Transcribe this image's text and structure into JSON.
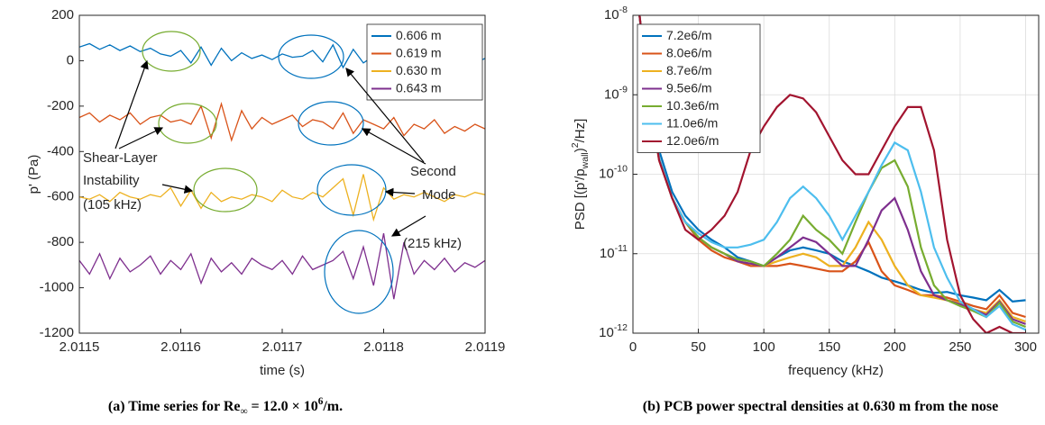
{
  "chart_data": [
    {
      "type": "line",
      "caption": "(a) Time series for Re_{∞} = 12.0 × 10^{6}/m.",
      "xlabel": "time (s)",
      "ylabel": "p' (Pa)",
      "x": [
        2.0115,
        2.01151,
        2.01152,
        2.01153,
        2.01154,
        2.01155,
        2.01156,
        2.01157,
        2.01158,
        2.01159,
        2.0116,
        2.01161,
        2.01162,
        2.01163,
        2.01164,
        2.01165,
        2.01166,
        2.01167,
        2.01168,
        2.01169,
        2.0117,
        2.01171,
        2.01172,
        2.01173,
        2.01174,
        2.01175,
        2.01176,
        2.01177,
        2.01178,
        2.01179,
        2.0118,
        2.01181,
        2.01182,
        2.01183,
        2.01184,
        2.01185,
        2.01186,
        2.01187,
        2.01188,
        2.01189,
        2.0119
      ],
      "xlim": [
        2.0115,
        2.0119
      ],
      "xticks": [
        2.0115,
        2.0116,
        2.0117,
        2.0118,
        2.0119
      ],
      "ylim": [
        -1200,
        200
      ],
      "yticks": [
        -1200,
        -1000,
        -800,
        -600,
        -400,
        -200,
        0,
        200
      ],
      "grid": false,
      "log_y": false,
      "legend": "upper right",
      "series": [
        {
          "name": "0.606 m",
          "color": "#0072bd",
          "values": [
            60,
            75,
            50,
            70,
            45,
            65,
            40,
            55,
            30,
            20,
            45,
            -10,
            60,
            -20,
            55,
            0,
            35,
            10,
            25,
            5,
            30,
            15,
            20,
            45,
            -5,
            70,
            -30,
            50,
            -10,
            20,
            5,
            25,
            -5,
            30,
            10,
            -15,
            20,
            5,
            35,
            -10,
            10
          ]
        },
        {
          "name": "0.619 m",
          "color": "#d95319",
          "values": [
            -250,
            -230,
            -270,
            -240,
            -260,
            -230,
            -280,
            -250,
            -240,
            -270,
            -260,
            -280,
            -200,
            -340,
            -190,
            -350,
            -220,
            -300,
            -250,
            -280,
            -260,
            -240,
            -290,
            -260,
            -270,
            -300,
            -230,
            -320,
            -260,
            -280,
            -300,
            -250,
            -330,
            -280,
            -300,
            -260,
            -320,
            -290,
            -310,
            -280,
            -300
          ]
        },
        {
          "name": "0.630 m",
          "color": "#edb120",
          "values": [
            -600,
            -610,
            -590,
            -620,
            -580,
            -600,
            -610,
            -590,
            -600,
            -560,
            -640,
            -570,
            -650,
            -580,
            -620,
            -600,
            -610,
            -590,
            -600,
            -620,
            -570,
            -600,
            -610,
            -580,
            -600,
            -560,
            -520,
            -680,
            -500,
            -700,
            -560,
            -610,
            -590,
            -600,
            -580,
            -600,
            -620,
            -590,
            -600,
            -580,
            -590
          ]
        },
        {
          "name": "0.643 m",
          "color": "#7e2f8e",
          "values": [
            -880,
            -940,
            -850,
            -960,
            -870,
            -930,
            -900,
            -860,
            -940,
            -880,
            -920,
            -850,
            -980,
            -870,
            -930,
            -890,
            -940,
            -870,
            -900,
            -920,
            -880,
            -940,
            -860,
            -920,
            -900,
            -880,
            -840,
            -960,
            -820,
            -990,
            -760,
            -1050,
            -800,
            -940,
            -880,
            -920,
            -870,
            -930,
            -890,
            -910,
            -880
          ]
        }
      ],
      "annotations": [
        {
          "lines": [
            "Shear-Layer",
            "Instability",
            "(105 kHz)"
          ]
        },
        {
          "lines": [
            "Second",
            "Mode",
            "(215 kHz)"
          ]
        }
      ]
    },
    {
      "type": "line",
      "caption": "(b) PCB power spectral densities at 0.630 m from the nose",
      "xlabel": "frequency (kHz)",
      "ylabel": "PSD [(p'/p_{wall})^{2}/Hz]",
      "x": [
        5,
        10,
        20,
        30,
        40,
        50,
        60,
        70,
        80,
        90,
        100,
        110,
        120,
        130,
        140,
        150,
        160,
        170,
        180,
        190,
        200,
        210,
        220,
        230,
        240,
        250,
        260,
        270,
        280,
        290,
        300
      ],
      "xlim": [
        0,
        310
      ],
      "xticks": [
        0,
        50,
        100,
        150,
        200,
        250,
        300
      ],
      "ylim": [
        1e-12,
        1e-08
      ],
      "yticks": [
        {
          "value": 1e-12,
          "label": "10^{-12}"
        },
        {
          "value": 1e-11,
          "label": "10^{-11}"
        },
        {
          "value": 1e-10,
          "label": "10^{-10}"
        },
        {
          "value": 1e-09,
          "label": "10^{-9}"
        },
        {
          "value": 1e-08,
          "label": "10^{-8}"
        }
      ],
      "grid": true,
      "log_y": true,
      "legend": "upper left",
      "series": [
        {
          "name": "7.2e6/m",
          "color": "#0072bd",
          "values": [
            1e-08,
            2e-09,
            2e-10,
            6e-11,
            3e-11,
            2e-11,
            1.5e-11,
            1.2e-11,
            9e-12,
            8e-12,
            7e-12,
            9e-12,
            1.1e-11,
            1.2e-11,
            1.1e-11,
            1e-11,
            8e-12,
            7e-12,
            6e-12,
            5e-12,
            4.5e-12,
            4e-12,
            3.5e-12,
            3.2e-12,
            3.3e-12,
            3e-12,
            2.8e-12,
            2.6e-12,
            3.5e-12,
            2.5e-12,
            2.6e-12
          ]
        },
        {
          "name": "8.0e6/m",
          "color": "#d95319",
          "values": [
            1e-08,
            1.5e-09,
            1.5e-10,
            5e-11,
            2.5e-11,
            1.5e-11,
            1.1e-11,
            9e-12,
            8e-12,
            7e-12,
            7e-12,
            7e-12,
            7.5e-12,
            7e-12,
            6.5e-12,
            6e-12,
            6e-12,
            8e-12,
            1.4e-11,
            6e-12,
            4e-12,
            3.5e-12,
            3e-12,
            3e-12,
            2.8e-12,
            2.5e-12,
            2.2e-12,
            2e-12,
            3e-12,
            1.8e-12,
            1.6e-12
          ]
        },
        {
          "name": "8.7e6/m",
          "color": "#edb120",
          "values": [
            1e-08,
            1.8e-09,
            1.6e-10,
            5e-11,
            2.5e-11,
            1.6e-11,
            1.2e-11,
            1e-11,
            8e-12,
            7.5e-12,
            7e-12,
            8e-12,
            9e-12,
            1e-11,
            9e-12,
            7e-12,
            7e-12,
            1.2e-11,
            2.5e-11,
            1.5e-11,
            7e-12,
            4e-12,
            3e-12,
            2.8e-12,
            2.6e-12,
            2.4e-12,
            2e-12,
            1.8e-12,
            2.6e-12,
            1.6e-12,
            1.4e-12
          ]
        },
        {
          "name": "9.5e6/m",
          "color": "#7e2f8e",
          "values": [
            1e-08,
            1.8e-09,
            1.6e-10,
            5e-11,
            2.5e-11,
            1.6e-11,
            1.2e-11,
            1e-11,
            8e-12,
            7.5e-12,
            7e-12,
            9e-12,
            1.2e-11,
            1.6e-11,
            1.4e-11,
            1e-11,
            7e-12,
            7e-12,
            1.5e-11,
            3.5e-11,
            5e-11,
            2e-11,
            6e-12,
            3e-12,
            2.6e-12,
            2.3e-12,
            2e-12,
            1.7e-12,
            2.5e-12,
            1.5e-12,
            1.3e-12
          ]
        },
        {
          "name": "10.3e6/m",
          "color": "#77ac30",
          "values": [
            1e-08,
            1.8e-09,
            1.6e-10,
            5e-11,
            2.5e-11,
            1.6e-11,
            1.2e-11,
            1e-11,
            8.5e-12,
            8e-12,
            7e-12,
            1e-11,
            1.5e-11,
            3e-11,
            2e-11,
            1.5e-11,
            1e-11,
            2.5e-11,
            6e-11,
            1.2e-10,
            1.5e-10,
            7e-11,
            1.2e-11,
            4e-12,
            2.6e-12,
            2.2e-12,
            1.9e-12,
            1.6e-12,
            2.4e-12,
            1.4e-12,
            1.2e-12
          ]
        },
        {
          "name": "11.0e6/m",
          "color": "#4dbeee",
          "values": [
            1e-08,
            1.8e-09,
            1.6e-10,
            5e-11,
            2.5e-11,
            1.8e-11,
            1.4e-11,
            1.2e-11,
            1.2e-11,
            1.3e-11,
            1.5e-11,
            2.5e-11,
            5e-11,
            7e-11,
            5e-11,
            3e-11,
            1.5e-11,
            3e-11,
            6e-11,
            1.3e-10,
            2.5e-10,
            2e-10,
            6e-11,
            1.2e-11,
            5e-12,
            2.5e-12,
            2e-12,
            1.6e-12,
            2.2e-12,
            1.3e-12,
            1.1e-12
          ]
        },
        {
          "name": "12.0e6/m",
          "color": "#a2142f",
          "values": [
            1e-08,
            2e-09,
            1.5e-10,
            5e-11,
            2e-11,
            1.5e-11,
            2e-11,
            3e-11,
            6e-11,
            2e-10,
            4e-10,
            7e-10,
            1e-09,
            9e-10,
            6e-10,
            3e-10,
            1.5e-10,
            1e-10,
            1e-10,
            2e-10,
            4e-10,
            7e-10,
            7e-10,
            2e-10,
            1.5e-11,
            3e-12,
            1.5e-12,
            1e-12,
            1.2e-12,
            1e-12,
            1e-12
          ]
        }
      ]
    }
  ]
}
